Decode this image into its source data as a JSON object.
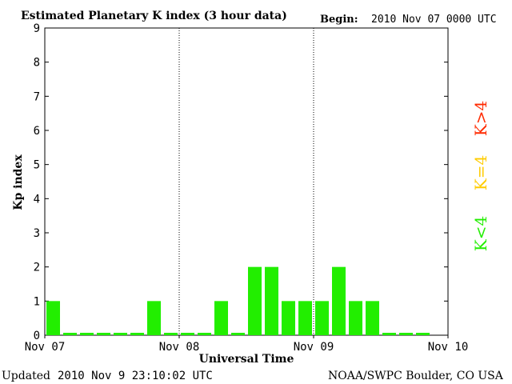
{
  "header": {
    "title": "Estimated Planetary K index (3 hour data)",
    "begin_label": "Begin:",
    "begin_value": "2010 Nov 07 0000 UTC"
  },
  "footer": {
    "updated_label": "Updated",
    "updated_value": "2010 Nov  9 23:10:02 UTC",
    "source": "NOAA/SWPC Boulder, CO USA"
  },
  "legend": {
    "items": [
      {
        "label": "K>4",
        "color": "#ff2a00"
      },
      {
        "label": "K=4",
        "color": "#ffcc00"
      },
      {
        "label": "K<4",
        "color": "#22ee00"
      }
    ]
  },
  "chart_data": {
    "type": "bar",
    "title": "Estimated Planetary K index (3 hour data)",
    "xlabel": "Universal Time",
    "ylabel": "Kp index",
    "ylim": [
      0,
      9
    ],
    "y_ticks": [
      "0",
      "1",
      "2",
      "3",
      "4",
      "5",
      "6",
      "7",
      "8",
      "9"
    ],
    "x_tick_labels": [
      "Nov 07",
      "Nov 08",
      "Nov 09",
      "Nov 10"
    ],
    "day_dividers": [
      "Nov 08",
      "Nov 09"
    ],
    "categories": [
      "Nov 07 00",
      "Nov 07 03",
      "Nov 07 06",
      "Nov 07 09",
      "Nov 07 12",
      "Nov 07 15",
      "Nov 07 18",
      "Nov 07 21",
      "Nov 08 00",
      "Nov 08 03",
      "Nov 08 06",
      "Nov 08 09",
      "Nov 08 12",
      "Nov 08 15",
      "Nov 08 18",
      "Nov 08 21",
      "Nov 09 00",
      "Nov 09 03",
      "Nov 09 06",
      "Nov 09 09",
      "Nov 09 12",
      "Nov 09 15",
      "Nov 09 18",
      "Nov 09 21"
    ],
    "values": [
      1,
      0,
      0,
      0,
      0,
      0,
      1,
      0,
      0,
      0,
      1,
      0,
      2,
      2,
      1,
      1,
      1,
      2,
      1,
      1,
      0,
      0,
      0,
      null
    ],
    "bar_color": "#22ee00"
  }
}
